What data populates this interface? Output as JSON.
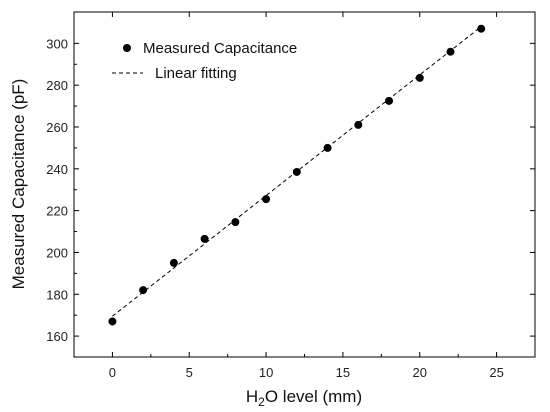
{
  "chart_data": {
    "type": "scatter",
    "title": "",
    "xlabel_prefix": "H",
    "xlabel_sub": "2",
    "xlabel_suffix": "O level (mm)",
    "ylabel": "Measured Capacitance (pF)",
    "xlim": [
      -2.5,
      27.5
    ],
    "ylim": [
      150,
      315
    ],
    "x_ticks": [
      0,
      5,
      10,
      15,
      20,
      25
    ],
    "y_ticks": [
      160,
      180,
      200,
      220,
      240,
      260,
      280,
      300
    ],
    "grid": false,
    "legend_position": "top-left",
    "series": [
      {
        "name": "Measured Capacitance",
        "kind": "points",
        "x": [
          0,
          2,
          4,
          6,
          8,
          10,
          12,
          14,
          16,
          18,
          20,
          22,
          24
        ],
        "y": [
          167,
          182,
          195,
          206.5,
          214.5,
          225.5,
          238.5,
          250,
          261,
          272.5,
          283.5,
          296,
          307
        ]
      },
      {
        "name": "Linear fitting",
        "kind": "dashed-line",
        "x": [
          0,
          24
        ],
        "y": [
          169.5,
          308
        ]
      }
    ],
    "colors": {
      "points": "#000000",
      "line": "#000000",
      "axes": "#000000"
    }
  }
}
